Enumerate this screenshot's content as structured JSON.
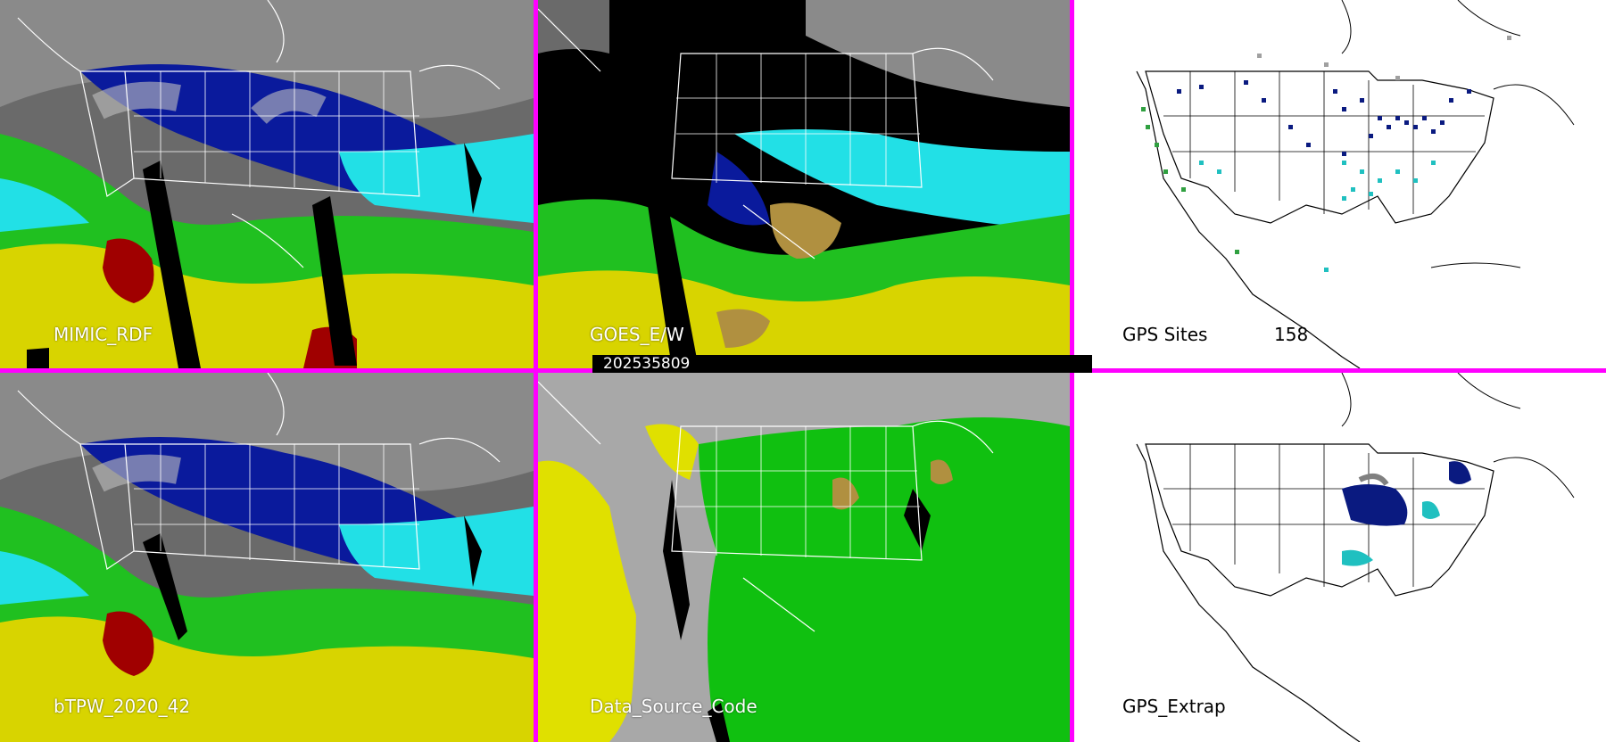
{
  "panels": [
    {
      "label": "MIMIC_RDF",
      "style": "satellite"
    },
    {
      "label": "GOES_E/W",
      "style": "goes"
    },
    {
      "label": "GPS Sites",
      "count": "158",
      "style": "gps"
    },
    {
      "label": "bTPW_2020_42",
      "style": "satellite"
    },
    {
      "label": "Data_Source_Code",
      "style": "source"
    },
    {
      "label": "GPS_Extrap",
      "style": "extrap"
    }
  ],
  "timestamp": "202535809",
  "colors": {
    "border": "#ff00ff",
    "tpw_blue": "#0a1a9c",
    "tpw_cyan": "#22e0e6",
    "tpw_green": "#20c020",
    "tpw_yellow": "#d8d400",
    "tpw_red": "#a00000",
    "gray_cloud": "#a0a0a0",
    "source_gray": "#a8a8a8",
    "source_green": "#10c010",
    "source_yellow": "#e0e000",
    "gps_navy": "#0a1a80",
    "gps_teal": "#20c0c0",
    "gps_green": "#30a040"
  }
}
